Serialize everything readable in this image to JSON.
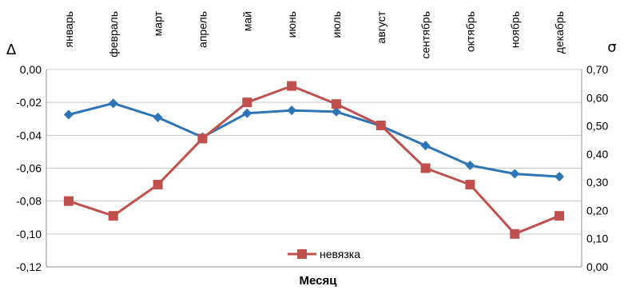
{
  "chart_data": {
    "type": "line",
    "categories": [
      "январь",
      "февраль",
      "март",
      "апрель",
      "май",
      "июнь",
      "июль",
      "август",
      "сентябрь",
      "октябрь",
      "ноябрь",
      "декабрь"
    ],
    "xlabel": "Месяц",
    "left_axis": {
      "label": "Δ",
      "ylim": [
        -0.12,
        0.0
      ],
      "ticks": [
        0.0,
        -0.02,
        -0.04,
        -0.06,
        -0.08,
        -0.1,
        -0.12
      ],
      "tick_labels": [
        "0,00",
        "-0,02",
        "-0,04",
        "-0,06",
        "-0,08",
        "-0,10",
        "-0,12"
      ]
    },
    "right_axis": {
      "label": "σ",
      "ylim": [
        0.0,
        0.7
      ],
      "ticks": [
        0.7,
        0.6,
        0.5,
        0.4,
        0.3,
        0.2,
        0.1,
        0.0
      ],
      "tick_labels": [
        "0,70",
        "0,60",
        "0,50",
        "0,40",
        "0,30",
        "0,20",
        "0,10",
        "0,00"
      ]
    },
    "grid": true,
    "legend_position": "bottom-center",
    "series": [
      {
        "name": "невязка",
        "axis": "left",
        "marker": "square",
        "color": "#c0504d",
        "values": [
          -0.08,
          -0.089,
          -0.07,
          -0.042,
          -0.02,
          -0.01,
          -0.021,
          -0.034,
          -0.06,
          -0.07,
          -0.1,
          -0.089
        ]
      },
      {
        "name": "",
        "axis": "right",
        "marker": "diamond",
        "color": "#2e75b6",
        "values": [
          0.54,
          0.58,
          0.53,
          0.46,
          0.545,
          0.555,
          0.55,
          0.5,
          0.43,
          0.36,
          0.33,
          0.32
        ]
      }
    ]
  }
}
